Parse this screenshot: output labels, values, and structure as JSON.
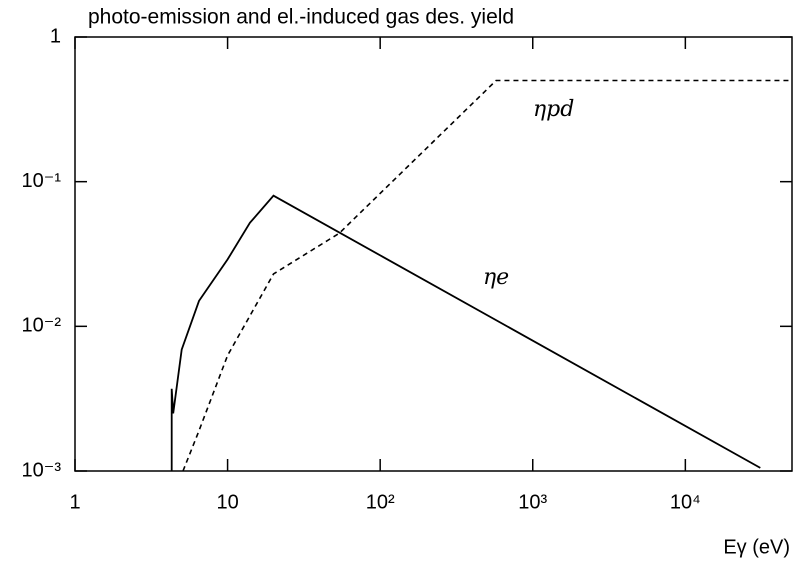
{
  "chart_data": {
    "type": "line",
    "title": "photo-emission and el.-induced gas des. yield",
    "x_label": "Eγ (eV)",
    "log_x": true,
    "log_y": true,
    "xlim": [
      1,
      50000
    ],
    "ylim": [
      0.001,
      1
    ],
    "xticks": [
      1,
      10,
      {
        "value": 100,
        "label": "10²"
      },
      {
        "value": 1000,
        "label": "10³"
      },
      {
        "value": 10000,
        "label": "10⁴"
      }
    ],
    "yticks": [
      {
        "value": 0.001,
        "label": "10⁻³"
      },
      {
        "value": 0.01,
        "label": "10⁻²"
      },
      {
        "value": 0.1,
        "label": "10⁻¹"
      },
      1
    ],
    "grid": false,
    "series": [
      {
        "name": "ηe",
        "color": "#000000",
        "style": "solid",
        "x": [
          4.3,
          4.3,
          4.4,
          5,
          6.5,
          10,
          14,
          20,
          31000
        ],
        "values": [
          0.001,
          0.0037,
          0.0025,
          0.0069,
          0.015,
          0.029,
          0.052,
          0.08,
          0.00105
        ]
      },
      {
        "name": "ηpd",
        "color": "#000000",
        "style": "dashed",
        "x": [
          5.1,
          6.5,
          10,
          20,
          54,
          575,
          50000
        ],
        "values": [
          0.001,
          0.0019,
          0.0063,
          0.023,
          0.044,
          0.5,
          0.5
        ]
      }
    ]
  }
}
